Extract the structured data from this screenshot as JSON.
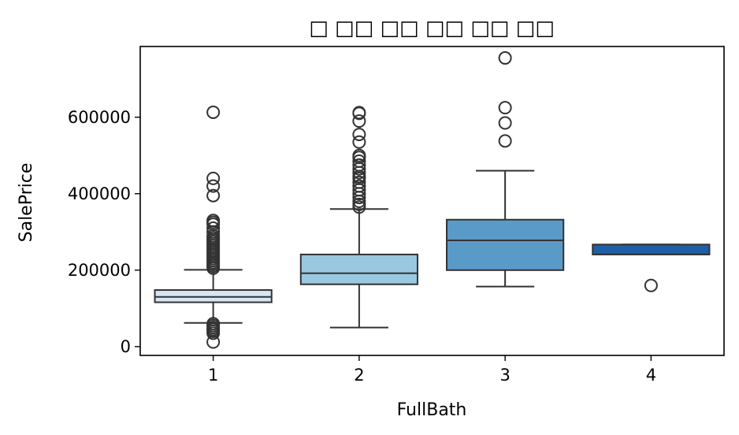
{
  "chart_data": {
    "type": "box",
    "title": "□ □□ □□ □□ □□ □□",
    "xlabel": "FullBath",
    "ylabel": "SalePrice",
    "ylim": [
      -23000,
      785000
    ],
    "yticks": [
      0,
      200000,
      400000,
      600000
    ],
    "yticklabels": [
      "0",
      "200000",
      "400000",
      "600000"
    ],
    "grid": false,
    "categories": [
      "1",
      "2",
      "3",
      "4"
    ],
    "boxes": [
      {
        "category": "1",
        "color": "#d6e6f4",
        "whisker_low": 62000,
        "q1": 116000,
        "median": 130000,
        "q3": 148000,
        "whisker_high": 201000,
        "outliers": [
          613000,
          440000,
          420000,
          395000,
          330000,
          325000,
          320000,
          310000,
          300000,
          290000,
          285000,
          280000,
          275000,
          270000,
          265000,
          260000,
          255000,
          250000,
          245000,
          240000,
          235000,
          230000,
          225000,
          220000,
          215000,
          210000,
          205000,
          60000,
          55000,
          50000,
          45000,
          40000,
          35000,
          12000
        ]
      },
      {
        "category": "2",
        "color": "#9ac8e0",
        "whisker_low": 50000,
        "q1": 163000,
        "median": 192000,
        "q3": 241000,
        "whisker_high": 360000,
        "outliers": [
          612000,
          610000,
          590000,
          555000,
          535000,
          500000,
          495000,
          485000,
          475000,
          465000,
          455000,
          445000,
          440000,
          430000,
          420000,
          410000,
          400000,
          390000,
          380000,
          372000,
          365000
        ]
      },
      {
        "category": "3",
        "color": "#5a9ac8",
        "whisker_low": 157000,
        "q1": 200000,
        "median": 278000,
        "q3": 332000,
        "whisker_high": 460000,
        "outliers": [
          755000,
          625000,
          585000,
          538000
        ]
      },
      {
        "category": "4",
        "color": "#1f5fa8",
        "whisker_low": 241000,
        "q1": 241000,
        "median": 241000,
        "q3": 267000,
        "whisker_high": 267000,
        "outliers": [
          160000
        ]
      }
    ]
  }
}
